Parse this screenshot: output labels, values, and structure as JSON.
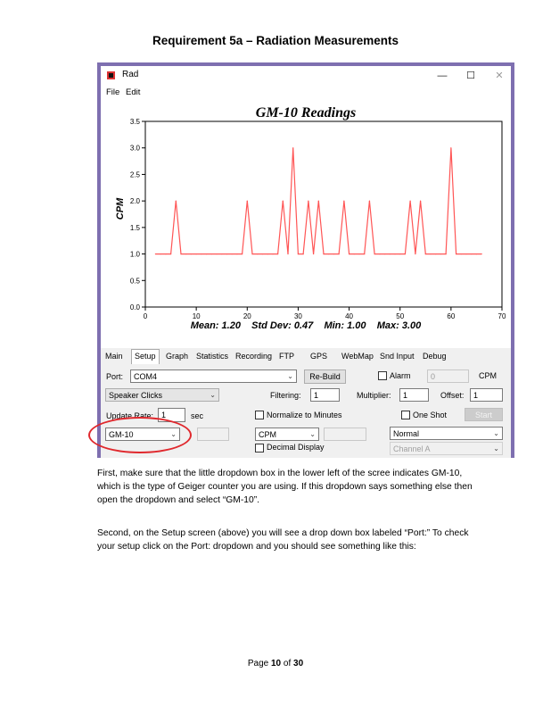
{
  "heading": "Requirement 5a – Radiation Measurements",
  "window": {
    "title": "Rad",
    "menu": [
      "File",
      "Edit"
    ],
    "controls": {
      "minimize": "—",
      "maximize": "☐",
      "close": "✕"
    }
  },
  "chart_data": {
    "type": "line",
    "title": "GM-10 Readings",
    "ylabel": "CPM",
    "xlabel": "",
    "xlim": [
      0,
      70
    ],
    "ylim": [
      0,
      3.5
    ],
    "xticks": [
      0,
      10,
      20,
      30,
      40,
      50,
      60,
      70
    ],
    "yticks": [
      0.0,
      0.5,
      1.0,
      1.5,
      2.0,
      2.5,
      3.0,
      3.5
    ],
    "grid": false,
    "series_color": "#ff5555",
    "x": [
      2,
      3,
      4,
      5,
      6,
      7,
      8,
      9,
      10,
      11,
      12,
      13,
      14,
      15,
      16,
      17,
      18,
      19,
      20,
      21,
      22,
      23,
      24,
      25,
      26,
      27,
      28,
      29,
      30,
      31,
      32,
      33,
      34,
      35,
      36,
      37,
      38,
      39,
      40,
      41,
      42,
      43,
      44,
      45,
      46,
      47,
      48,
      49,
      50,
      51,
      52,
      53,
      54,
      55,
      56,
      57,
      58,
      59,
      60,
      61,
      62,
      63,
      64,
      65,
      66
    ],
    "y": [
      1,
      1,
      1,
      1,
      2,
      1,
      1,
      1,
      1,
      1,
      1,
      1,
      1,
      1,
      1,
      1,
      1,
      1,
      2,
      1,
      1,
      1,
      1,
      1,
      1,
      2,
      1,
      3,
      1,
      1,
      2,
      1,
      2,
      1,
      1,
      1,
      1,
      2,
      1,
      1,
      1,
      1,
      2,
      1,
      1,
      1,
      1,
      1,
      1,
      1,
      2,
      1,
      2,
      1,
      1,
      1,
      1,
      1,
      3,
      1,
      1,
      1,
      1,
      1,
      1
    ],
    "stats": "Mean: 1.20    Std Dev: 0.47    Min: 1.00    Max: 3.00"
  },
  "tabs": [
    "Main",
    "Setup",
    "Graph",
    "Statistics",
    "Recording",
    "FTP",
    "GPS",
    "WebMap",
    "Snd Input",
    "Debug"
  ],
  "active_tab": "Setup",
  "setup": {
    "port_label": "Port:",
    "port_value": "COM4",
    "rebuild": "Re-Build",
    "alarm_label": "Alarm",
    "alarm_value": "0",
    "cpm_label": "CPM",
    "sound_value": "Speaker Clicks",
    "filtering_label": "Filtering:",
    "filtering_value": "1",
    "multiplier_label": "Multiplier:",
    "multiplier_value": "1",
    "offset_label": "Offset:",
    "offset_value": "1",
    "update_rate_label": "Update Rate:",
    "update_rate_value": "1",
    "sec_label": "sec",
    "normalize_label": "Normalize to Minutes",
    "one_shot_label": "One Shot",
    "start_label": "Start",
    "counter_value": "GM-10",
    "units_value": "CPM",
    "decimal_label": "Decimal Display",
    "mode_value": "Normal",
    "channel_value": "Channel A"
  },
  "paragraph1": "First, make sure that the little dropdown box in the lower left of the scree indicates GM-10, which is the type of Geiger counter you are using.  If this dropdown says something else then open the dropdown and select “GM-10”.",
  "paragraph2": "Second, on the Setup screen (above) you will see a drop down box labeled “Port:”  To check your setup click on the Port: dropdown and you should see something like this:",
  "footer": {
    "page_word": "Page",
    "page_num": "10",
    "of_word": "of",
    "total": "30"
  }
}
